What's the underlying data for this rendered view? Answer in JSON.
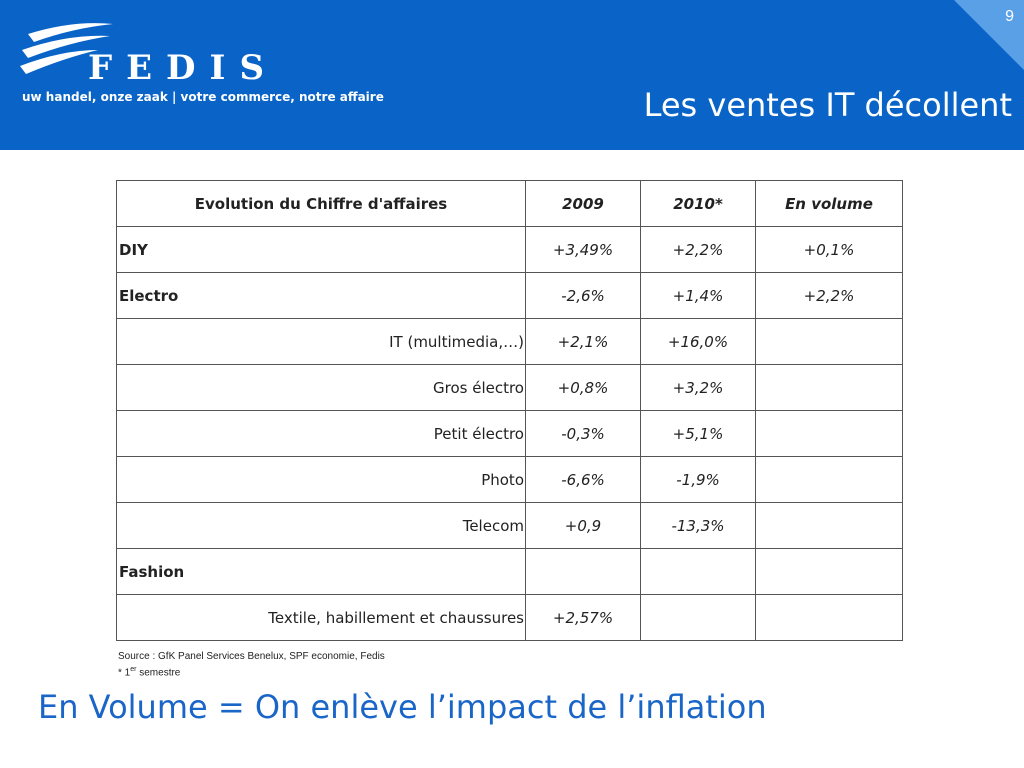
{
  "header": {
    "page_number": "9",
    "logo_text": "FEDIS",
    "tagline": "uw handel, onze zaak  |  votre commerce, notre affaire",
    "title": "Les ventes IT décollent"
  },
  "table": {
    "headers": [
      "Evolution du Chiffre d'affaires",
      "2009",
      "2010*",
      "En volume"
    ],
    "rows": [
      {
        "label": "DIY",
        "v2009": "+3,49%",
        "v2010": "+2,2%",
        "volume": "+0,1%"
      },
      {
        "label": "Electro",
        "v2009": "-2,6%",
        "v2010": "+1,4%",
        "volume": "+2,2%"
      },
      {
        "label": "IT (multimedia,…)",
        "v2009": "+2,1%",
        "v2010": "+16,0%",
        "volume": ""
      },
      {
        "label": "Gros électro",
        "v2009": "+0,8%",
        "v2010": "+3,2%",
        "volume": ""
      },
      {
        "label": "Petit électro",
        "v2009": "-0,3%",
        "v2010": "+5,1%",
        "volume": ""
      },
      {
        "label": "Photo",
        "v2009": "-6,6%",
        "v2010": "-1,9%",
        "volume": ""
      },
      {
        "label": "Telecom",
        "v2009": "+0,9",
        "v2010": "-13,3%",
        "volume": ""
      },
      {
        "label": "Fashion",
        "v2009": "",
        "v2010": "",
        "volume": ""
      },
      {
        "label": "Textile, habillement et chaussures",
        "v2009": "+2,57%",
        "v2010": "",
        "volume": ""
      }
    ]
  },
  "source": {
    "line1": "Source : GfK Panel Services Benelux, SPF economie, Fedis",
    "line2_prefix": "* 1",
    "line2_sup": "er",
    "line2_suffix": " semestre"
  },
  "footer": {
    "text": "En Volume = On enlève l’impact de l’inflation"
  },
  "colors": {
    "header_bg": "#0a64c8",
    "corner": "#5aa0e6",
    "footer_text": "#1a66c8"
  }
}
